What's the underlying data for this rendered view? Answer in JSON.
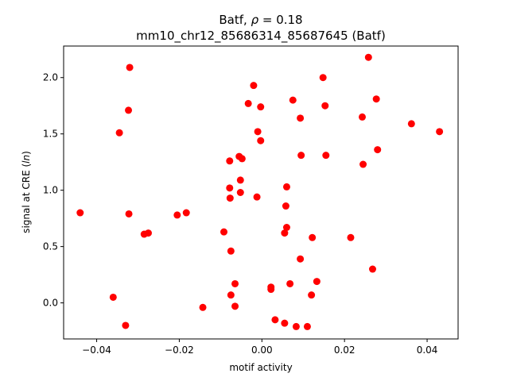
{
  "chart_data": {
    "type": "scatter",
    "title_line1": "Batf, ρ = 0.18",
    "title_line2": "mm10_chr12_85686314_85687645 (Batf)",
    "xlabel": "motif activity",
    "ylabel": "signal at CRE (ln)",
    "xlim": [
      -0.048,
      0.0475
    ],
    "ylim": [
      -0.32,
      2.28
    ],
    "xticks": [
      -0.04,
      -0.02,
      0.0,
      0.02,
      0.04
    ],
    "xtick_labels": [
      "−0.04",
      "−0.02",
      "0.00",
      "0.02",
      "0.04"
    ],
    "yticks": [
      0.0,
      0.5,
      1.0,
      1.5,
      2.0
    ],
    "ytick_labels": [
      "0.0",
      "0.5",
      "1.0",
      "1.5",
      "2.0"
    ],
    "grid": false,
    "point_color": "#ff0000",
    "series": [
      {
        "points": [
          [
            -0.044,
            0.8
          ],
          [
            -0.032,
            2.09
          ],
          [
            -0.0323,
            1.71
          ],
          [
            -0.0345,
            1.51
          ],
          [
            -0.0322,
            0.79
          ],
          [
            -0.0285,
            0.61
          ],
          [
            -0.0275,
            0.62
          ],
          [
            -0.0205,
            0.78
          ],
          [
            -0.0183,
            0.8
          ],
          [
            -0.036,
            0.05
          ],
          [
            -0.033,
            -0.2
          ],
          [
            -0.0143,
            -0.04
          ],
          [
            -0.0092,
            0.63
          ],
          [
            -0.0078,
            1.26
          ],
          [
            -0.0078,
            1.02
          ],
          [
            -0.0077,
            0.93
          ],
          [
            -0.0055,
            1.3
          ],
          [
            -0.0048,
            1.28
          ],
          [
            -0.0052,
            1.09
          ],
          [
            -0.0052,
            0.98
          ],
          [
            -0.0033,
            1.77
          ],
          [
            -0.002,
            1.93
          ],
          [
            -0.0003,
            1.74
          ],
          [
            -0.001,
            1.52
          ],
          [
            -0.0003,
            1.44
          ],
          [
            -0.0012,
            0.94
          ],
          [
            -0.0075,
            0.46
          ],
          [
            -0.0065,
            0.17
          ],
          [
            -0.0075,
            0.07
          ],
          [
            -0.0065,
            -0.03
          ],
          [
            0.0022,
            0.14
          ],
          [
            0.0022,
            0.12
          ],
          [
            0.0032,
            -0.15
          ],
          [
            0.0055,
            -0.18
          ],
          [
            0.0083,
            -0.21
          ],
          [
            0.011,
            -0.21
          ],
          [
            0.006,
            1.03
          ],
          [
            0.0058,
            0.86
          ],
          [
            0.006,
            0.67
          ],
          [
            0.0055,
            0.62
          ],
          [
            0.0068,
            0.17
          ],
          [
            0.0075,
            1.8
          ],
          [
            0.0093,
            1.64
          ],
          [
            0.0095,
            1.31
          ],
          [
            0.0093,
            0.39
          ],
          [
            0.0148,
            2.0
          ],
          [
            0.0153,
            1.75
          ],
          [
            0.0155,
            1.31
          ],
          [
            0.0122,
            0.58
          ],
          [
            0.0133,
            0.19
          ],
          [
            0.012,
            0.07
          ],
          [
            0.0243,
            1.65
          ],
          [
            0.0245,
            1.23
          ],
          [
            0.0258,
            2.18
          ],
          [
            0.0277,
            1.81
          ],
          [
            0.028,
            1.36
          ],
          [
            0.0215,
            0.58
          ],
          [
            0.0268,
            0.3
          ],
          [
            0.0362,
            1.59
          ],
          [
            0.043,
            1.52
          ]
        ]
      }
    ]
  }
}
